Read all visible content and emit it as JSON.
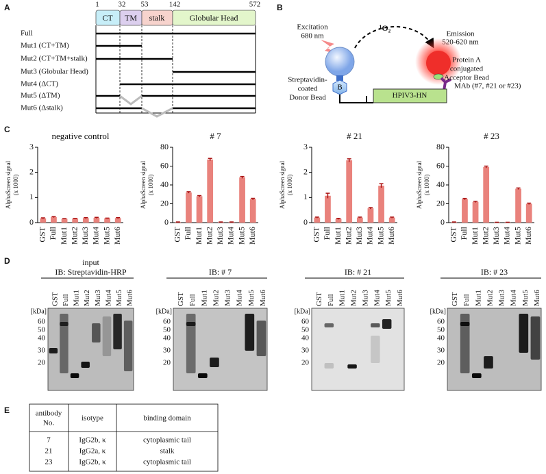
{
  "panel_labels": [
    "A",
    "B",
    "C",
    "D",
    "E"
  ],
  "panel_a": {
    "positions": [
      "1",
      "32",
      "53",
      "142",
      "572"
    ],
    "domains": [
      "CT",
      "TM",
      "stalk",
      "Globular Head"
    ],
    "constructs": [
      "Full",
      "Mut1 (CT+TM)",
      "Mut2 (CT+TM+stalk)",
      "Mut3 (Globular Head)",
      "Mut4 (ΔCT)",
      "Mut5 (ΔTM)",
      "Mut6 (Δstalk)"
    ]
  },
  "panel_b": {
    "excitation": [
      "Excitation",
      "680 nm"
    ],
    "singlet_oxygen": "¹O₂",
    "emission": [
      "Emission",
      "520-620 nm"
    ],
    "donor": [
      "Streptavidin-",
      "coated",
      "Donor Bead"
    ],
    "acceptor": [
      "Protein A",
      "conjugated",
      "Acceptor Bead"
    ],
    "biotin": "B",
    "protein": "HPIV3-HN",
    "antibody": "MAb (#7, #21 or #23)"
  },
  "chart_data": [
    {
      "type": "bar",
      "title": "negative control",
      "ylabel": [
        "AlphaScreen signal",
        "(x 1000)"
      ],
      "color": "#e9827c",
      "categories": [
        "GST",
        "Full",
        "Mut1",
        "Mut2",
        "Mut3",
        "Mut4",
        "Mut5",
        "Mut6"
      ],
      "values": [
        0.17,
        0.22,
        0.15,
        0.16,
        0.18,
        0.19,
        0.17,
        0.18
      ],
      "errors": [
        0.02,
        0.02,
        0.01,
        0.01,
        0.02,
        0.02,
        0.01,
        0.02
      ],
      "ylim": [
        0,
        3
      ],
      "yticks": [
        0,
        1,
        2,
        3
      ]
    },
    {
      "type": "bar",
      "title": "# 7",
      "ylabel": [
        "AlphaScreen signal",
        "(x 1000)"
      ],
      "color": "#e9827c",
      "categories": [
        "GST",
        "Full",
        "Mut1",
        "Mut2",
        "Mut3",
        "Mut4",
        "Mut5",
        "Mut6"
      ],
      "values": [
        0.5,
        32,
        28,
        67,
        0.5,
        0.5,
        48,
        25
      ],
      "errors": [
        0.2,
        0.8,
        0.7,
        1.2,
        0.2,
        0.2,
        1,
        0.8
      ],
      "ylim": [
        0,
        80
      ],
      "yticks": [
        0,
        20,
        40,
        60,
        80
      ]
    },
    {
      "type": "bar",
      "title": "# 21",
      "ylabel": [
        "AlphaScreen signal",
        "(x 1000)"
      ],
      "color": "#e9827c",
      "categories": [
        "GST",
        "Full",
        "Mut1",
        "Mut2",
        "Mut3",
        "Mut4",
        "Mut5",
        "Mut6"
      ],
      "values": [
        0.2,
        1.07,
        0.15,
        2.48,
        0.2,
        0.57,
        1.47,
        0.2
      ],
      "errors": [
        0.02,
        0.1,
        0.02,
        0.06,
        0.02,
        0.03,
        0.08,
        0.02
      ],
      "ylim": [
        0,
        3
      ],
      "yticks": [
        0,
        1,
        2,
        3
      ]
    },
    {
      "type": "bar",
      "title": "# 23",
      "ylabel": [
        "AlphaScreen signal",
        "(x 1000)"
      ],
      "color": "#e9827c",
      "categories": [
        "GST",
        "Full",
        "Mut1",
        "Mut2",
        "Mut3",
        "Mut4",
        "Mut5",
        "Mut6"
      ],
      "values": [
        0.5,
        25,
        22,
        59,
        0.3,
        0.3,
        36,
        20
      ],
      "errors": [
        0.2,
        0.7,
        0.6,
        1,
        0.1,
        0.1,
        0.8,
        0.7
      ],
      "ylim": [
        0,
        80
      ],
      "yticks": [
        0,
        20,
        40,
        60,
        80
      ]
    }
  ],
  "panel_d": {
    "blots": [
      {
        "title": [
          "input",
          "IB: Streptavidin-HRP"
        ],
        "unit": "[kDa]",
        "markers": [
          60,
          50,
          40,
          30,
          20
        ],
        "lanes": [
          "GST",
          "Full",
          "Mut1",
          "Mut2",
          "Mut3",
          "Mut4",
          "Mut5",
          "Mut6"
        ]
      },
      {
        "title": [
          "IB: # 7"
        ],
        "unit": "[kDa]",
        "markers": [
          60,
          50,
          40,
          30,
          20
        ],
        "lanes": [
          "GST",
          "Full",
          "Mut1",
          "Mut2",
          "Mut3",
          "Mut4",
          "Mut5",
          "Mut6"
        ]
      },
      {
        "title": [
          "IB: # 21"
        ],
        "unit": "[kDa]",
        "markers": [
          60,
          50,
          40,
          30,
          20
        ],
        "lanes": [
          "GST",
          "Full",
          "Mut1",
          "Mut2",
          "Mut3",
          "Mut4",
          "Mut5",
          "Mut6"
        ]
      },
      {
        "title": [
          "IB: # 23"
        ],
        "unit": "[kDa]",
        "markers": [
          60,
          50,
          40,
          30,
          20
        ],
        "lanes": [
          "GST",
          "Full",
          "Mut1",
          "Mut2",
          "Mut3",
          "Mut4",
          "Mut5",
          "Mut6"
        ]
      }
    ]
  },
  "panel_e": {
    "header": [
      [
        "antibody",
        "No."
      ],
      "isotype",
      "binding domain"
    ],
    "rows": [
      [
        "7",
        "IgG2b, κ",
        "cytoplasmic tail"
      ],
      [
        "21",
        "IgG2a, κ",
        "stalk"
      ],
      [
        "23",
        "IgG2b, κ",
        "cytoplasmic tail"
      ]
    ]
  }
}
